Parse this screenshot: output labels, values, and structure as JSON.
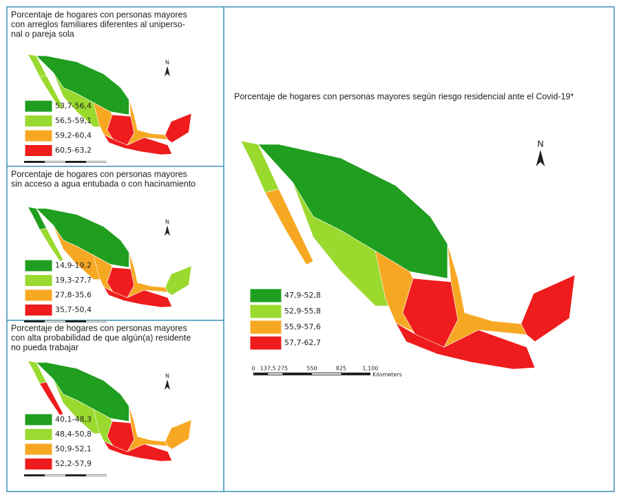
{
  "panels": [
    {
      "title": [
        "Porcentaje de hogares con personas mayores",
        "con arreglos familiares diferentes al uniperso-",
        "nal o pareja sola"
      ],
      "north": "N",
      "legend": [
        {
          "label": "53,7-56,4",
          "color": "#1f9e1f"
        },
        {
          "label": "56,5-59,1",
          "color": "#9ad92e"
        },
        {
          "label": "59,2-60,4",
          "color": "#f7a823"
        },
        {
          "label": "60,5-63,2",
          "color": "#ee1c1c"
        }
      ]
    },
    {
      "title": [
        "Porcentaje de hogares con personas mayores",
        "sin acceso a agua entubada o con hacinamiento"
      ],
      "north": "N",
      "legend": [
        {
          "label": "14,9-19,2",
          "color": "#1f9e1f"
        },
        {
          "label": "19,3-27,7",
          "color": "#9ad92e"
        },
        {
          "label": "27,8-35,6",
          "color": "#f7a823"
        },
        {
          "label": "35,7-50,4",
          "color": "#ee1c1c"
        }
      ]
    },
    {
      "title": [
        "Porcentaje de hogares con personas mayores",
        "con alta probabilidad de que algún(a) residente",
        "no pueda trabajar"
      ],
      "north": "N",
      "legend": [
        {
          "label": "40,1-48,3",
          "color": "#1f9e1f"
        },
        {
          "label": "48,4-50,8",
          "color": "#9ad92e"
        },
        {
          "label": "50,9-52,1",
          "color": "#f7a823"
        },
        {
          "label": "52,2-57,9",
          "color": "#ee1c1c"
        }
      ]
    }
  ],
  "main": {
    "title": "Porcentaje de hogares con personas mayores según riesgo residencial ante el Covid-19*",
    "north": "N",
    "legend": [
      {
        "label": "47,9-52,8",
        "color": "#1f9e1f"
      },
      {
        "label": "52,9-55,8",
        "color": "#9ad92e"
      },
      {
        "label": "55,9-57,6",
        "color": "#f7a823"
      },
      {
        "label": "57,7-62,7",
        "color": "#ee1c1c"
      }
    ],
    "scale": {
      "ticks": [
        "0",
        "137,5",
        "275",
        "550",
        "825",
        "1,100"
      ],
      "unit": "Kilometers"
    }
  }
}
